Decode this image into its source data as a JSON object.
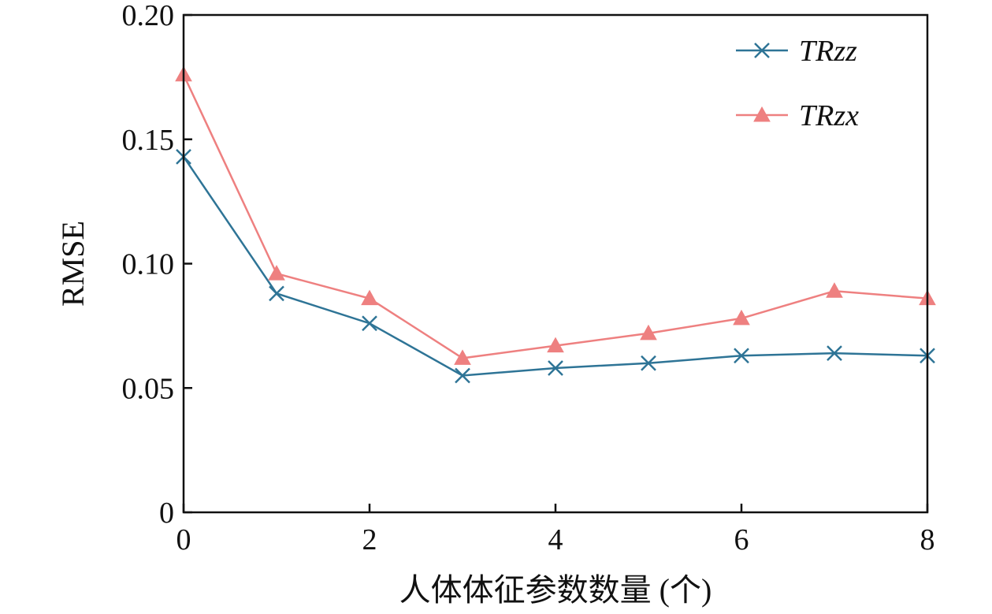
{
  "chart_data": {
    "type": "line",
    "title": "",
    "xlabel": "人体体征参数数量 (个)",
    "ylabel": "RMSE",
    "xlim": [
      0,
      8
    ],
    "ylim": [
      0,
      0.2
    ],
    "x_ticks": [
      {
        "value": 0,
        "label": "0"
      },
      {
        "value": 2,
        "label": "2"
      },
      {
        "value": 4,
        "label": "4"
      },
      {
        "value": 6,
        "label": "6"
      },
      {
        "value": 8,
        "label": "8"
      }
    ],
    "y_ticks": [
      {
        "value": 0,
        "label": "0"
      },
      {
        "value": 0.05,
        "label": "0.05"
      },
      {
        "value": 0.1,
        "label": "0.10"
      },
      {
        "value": 0.15,
        "label": "0.15"
      },
      {
        "value": 0.2,
        "label": "0.20"
      }
    ],
    "x": [
      0,
      1,
      2,
      3,
      4,
      5,
      6,
      7,
      8
    ],
    "grid": false,
    "legend_position": "top-right",
    "series": [
      {
        "name": "TRzz",
        "color": "#2e7496",
        "marker": "x",
        "values": [
          0.143,
          0.088,
          0.076,
          0.055,
          0.058,
          0.06,
          0.063,
          0.064,
          0.063
        ]
      },
      {
        "name": "TRzx",
        "color": "#ee8080",
        "marker": "triangle",
        "values": [
          0.176,
          0.096,
          0.086,
          0.062,
          0.067,
          0.072,
          0.078,
          0.089,
          0.086
        ]
      }
    ]
  }
}
